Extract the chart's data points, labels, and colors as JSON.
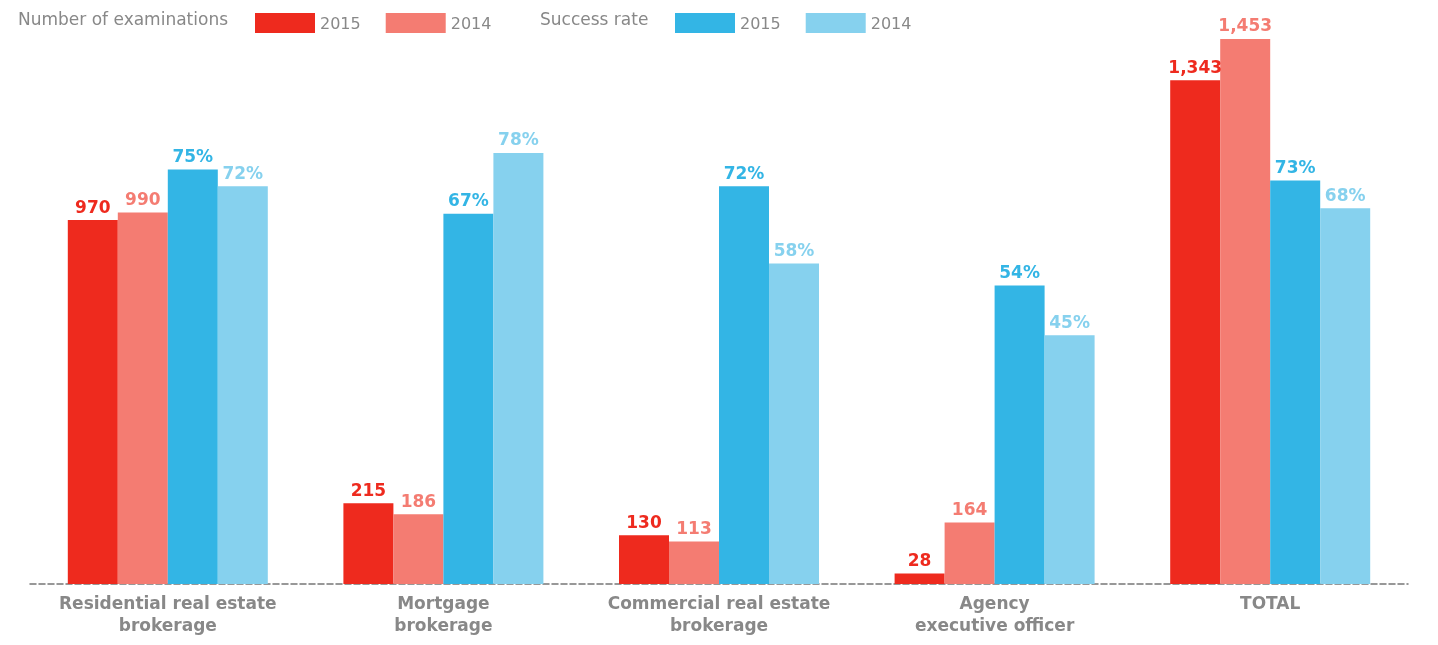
{
  "chart_data": {
    "type": "bar",
    "categories": [
      "Residential real estate\nbrokerage",
      "Mortgage\nbrokerage",
      "Commercial real estate\nbrokerage",
      "Agency\nexecutive officer",
      "TOTAL"
    ],
    "annotations": [
      "Number of examinations",
      "Success rate"
    ],
    "series": [
      {
        "name": "2015",
        "color": "#ee2a1e",
        "values": [
          970,
          215,
          130,
          28,
          1343
        ],
        "value_labels": [
          "970",
          "215",
          "130",
          "28",
          "1,343"
        ]
      },
      {
        "name": "2014",
        "color": "#f47c72",
        "values": [
          990,
          186,
          113,
          164,
          1453
        ],
        "value_labels": [
          "990",
          "186",
          "113",
          "164",
          "1,453"
        ]
      },
      {
        "name": "2015",
        "color": "#33b5e5",
        "axis": "y2",
        "values": [
          75,
          67,
          72,
          54,
          73
        ],
        "value_labels": [
          "75%",
          "67%",
          "72%",
          "54%",
          "73%"
        ]
      },
      {
        "name": "2014",
        "color": "#86d1ee",
        "axis": "y2",
        "values": [
          72,
          78,
          58,
          45,
          68
        ],
        "value_labels": [
          "72%",
          "78%",
          "58%",
          "45%",
          "68%"
        ]
      }
    ],
    "legend": "top left",
    "grid": false
  }
}
